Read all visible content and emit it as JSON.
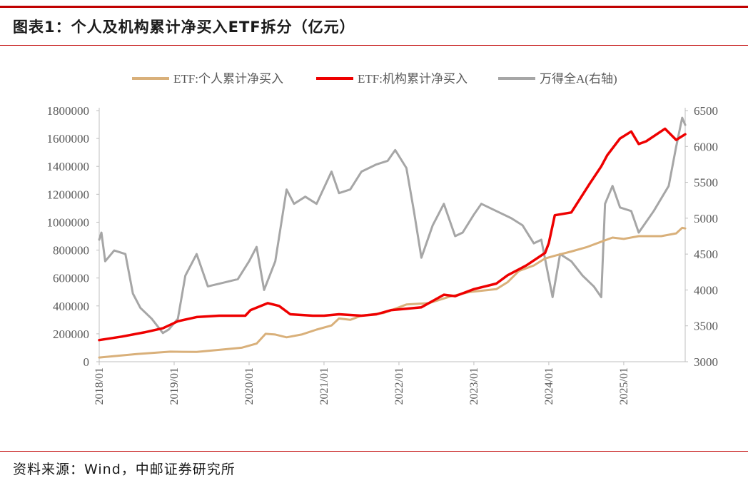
{
  "header": {
    "title": "图表1：个人及机构累计净买入ETF拆分（亿元）"
  },
  "footer": {
    "source": "资料来源：Wind，中邮证券研究所"
  },
  "colors": {
    "accent": "#c00000",
    "individual": "#d9b07a",
    "institution": "#ee0000",
    "wind_a": "#a6a6a6"
  },
  "chart_data": {
    "type": "line",
    "legend_position": "top-center",
    "legend": [
      "ETF:个人累计净买入",
      "ETF:机构累计净买入",
      "万得全A(右轴)"
    ],
    "x_ticks": [
      "2018/01",
      "2019/01",
      "2020/01",
      "2021/01",
      "2022/01",
      "2023/01",
      "2024/01",
      "2025/01"
    ],
    "x_range": [
      2018.0,
      2025.82
    ],
    "y_left": {
      "min": 0,
      "max": 1800000,
      "step": 200000,
      "ticks": [
        "0",
        "200000",
        "400000",
        "600000",
        "800000",
        "1000000",
        "1200000",
        "1400000",
        "1600000",
        "1800000"
      ]
    },
    "y_right": {
      "min": 3000,
      "max": 6500,
      "step": 500,
      "ticks": [
        "3000",
        "3500",
        "4000",
        "4500",
        "5000",
        "5500",
        "6000",
        "6500"
      ]
    },
    "series": [
      {
        "name": "ETF:个人累计净买入",
        "axis": "left",
        "points": [
          [
            2018.0,
            30000
          ],
          [
            2018.5,
            55000
          ],
          [
            2018.95,
            72000
          ],
          [
            2019.3,
            70000
          ],
          [
            2019.6,
            85000
          ],
          [
            2019.9,
            100000
          ],
          [
            2020.1,
            130000
          ],
          [
            2020.22,
            200000
          ],
          [
            2020.35,
            195000
          ],
          [
            2020.5,
            175000
          ],
          [
            2020.7,
            195000
          ],
          [
            2020.9,
            230000
          ],
          [
            2021.1,
            260000
          ],
          [
            2021.2,
            310000
          ],
          [
            2021.35,
            300000
          ],
          [
            2021.5,
            330000
          ],
          [
            2021.8,
            350000
          ],
          [
            2022.1,
            410000
          ],
          [
            2022.4,
            420000
          ],
          [
            2022.7,
            470000
          ],
          [
            2022.95,
            500000
          ],
          [
            2023.3,
            520000
          ],
          [
            2023.45,
            570000
          ],
          [
            2023.6,
            650000
          ],
          [
            2023.8,
            690000
          ],
          [
            2023.95,
            740000
          ],
          [
            2024.08,
            760000
          ],
          [
            2024.3,
            790000
          ],
          [
            2024.5,
            820000
          ],
          [
            2024.7,
            860000
          ],
          [
            2024.85,
            890000
          ],
          [
            2025.0,
            880000
          ],
          [
            2025.2,
            900000
          ],
          [
            2025.5,
            900000
          ],
          [
            2025.7,
            920000
          ],
          [
            2025.78,
            960000
          ],
          [
            2025.82,
            955000
          ]
        ]
      },
      {
        "name": "ETF:机构累计净买入",
        "axis": "left",
        "points": [
          [
            2018.0,
            155000
          ],
          [
            2018.3,
            180000
          ],
          [
            2018.6,
            210000
          ],
          [
            2018.85,
            240000
          ],
          [
            2019.05,
            290000
          ],
          [
            2019.3,
            320000
          ],
          [
            2019.6,
            330000
          ],
          [
            2019.95,
            330000
          ],
          [
            2020.02,
            370000
          ],
          [
            2020.25,
            420000
          ],
          [
            2020.4,
            400000
          ],
          [
            2020.55,
            340000
          ],
          [
            2020.85,
            330000
          ],
          [
            2021.0,
            330000
          ],
          [
            2021.2,
            340000
          ],
          [
            2021.5,
            330000
          ],
          [
            2021.7,
            340000
          ],
          [
            2021.9,
            370000
          ],
          [
            2022.1,
            380000
          ],
          [
            2022.3,
            390000
          ],
          [
            2022.6,
            480000
          ],
          [
            2022.75,
            470000
          ],
          [
            2023.0,
            520000
          ],
          [
            2023.3,
            560000
          ],
          [
            2023.45,
            620000
          ],
          [
            2023.7,
            690000
          ],
          [
            2023.95,
            780000
          ],
          [
            2024.0,
            850000
          ],
          [
            2024.08,
            1050000
          ],
          [
            2024.3,
            1070000
          ],
          [
            2024.55,
            1280000
          ],
          [
            2024.7,
            1400000
          ],
          [
            2024.78,
            1480000
          ],
          [
            2024.95,
            1600000
          ],
          [
            2025.1,
            1650000
          ],
          [
            2025.2,
            1560000
          ],
          [
            2025.3,
            1580000
          ],
          [
            2025.55,
            1670000
          ],
          [
            2025.7,
            1590000
          ],
          [
            2025.82,
            1630000
          ]
        ]
      },
      {
        "name": "万得全A(右轴)",
        "axis": "right",
        "points": [
          [
            2018.0,
            4700
          ],
          [
            2018.03,
            4800
          ],
          [
            2018.08,
            4400
          ],
          [
            2018.2,
            4550
          ],
          [
            2018.35,
            4500
          ],
          [
            2018.45,
            3950
          ],
          [
            2018.55,
            3750
          ],
          [
            2018.7,
            3600
          ],
          [
            2018.85,
            3400
          ],
          [
            2018.93,
            3450
          ],
          [
            2019.05,
            3600
          ],
          [
            2019.15,
            4200
          ],
          [
            2019.3,
            4500
          ],
          [
            2019.45,
            4050
          ],
          [
            2019.65,
            4100
          ],
          [
            2019.85,
            4150
          ],
          [
            2020.0,
            4400
          ],
          [
            2020.1,
            4600
          ],
          [
            2020.2,
            4000
          ],
          [
            2020.35,
            4400
          ],
          [
            2020.5,
            5400
          ],
          [
            2020.6,
            5200
          ],
          [
            2020.75,
            5300
          ],
          [
            2020.9,
            5200
          ],
          [
            2021.1,
            5650
          ],
          [
            2021.2,
            5350
          ],
          [
            2021.35,
            5400
          ],
          [
            2021.5,
            5650
          ],
          [
            2021.7,
            5750
          ],
          [
            2021.85,
            5800
          ],
          [
            2021.95,
            5950
          ],
          [
            2022.1,
            5700
          ],
          [
            2022.2,
            5100
          ],
          [
            2022.3,
            4450
          ],
          [
            2022.45,
            4900
          ],
          [
            2022.6,
            5200
          ],
          [
            2022.75,
            4750
          ],
          [
            2022.85,
            4800
          ],
          [
            2023.0,
            5050
          ],
          [
            2023.1,
            5200
          ],
          [
            2023.3,
            5100
          ],
          [
            2023.5,
            5000
          ],
          [
            2023.65,
            4900
          ],
          [
            2023.8,
            4650
          ],
          [
            2023.9,
            4700
          ],
          [
            2024.05,
            3900
          ],
          [
            2024.15,
            4500
          ],
          [
            2024.3,
            4400
          ],
          [
            2024.45,
            4200
          ],
          [
            2024.6,
            4050
          ],
          [
            2024.7,
            3900
          ],
          [
            2024.75,
            5200
          ],
          [
            2024.85,
            5450
          ],
          [
            2024.95,
            5150
          ],
          [
            2025.1,
            5100
          ],
          [
            2025.2,
            4800
          ],
          [
            2025.4,
            5100
          ],
          [
            2025.6,
            5450
          ],
          [
            2025.7,
            6000
          ],
          [
            2025.78,
            6400
          ],
          [
            2025.82,
            6300
          ]
        ]
      }
    ]
  }
}
